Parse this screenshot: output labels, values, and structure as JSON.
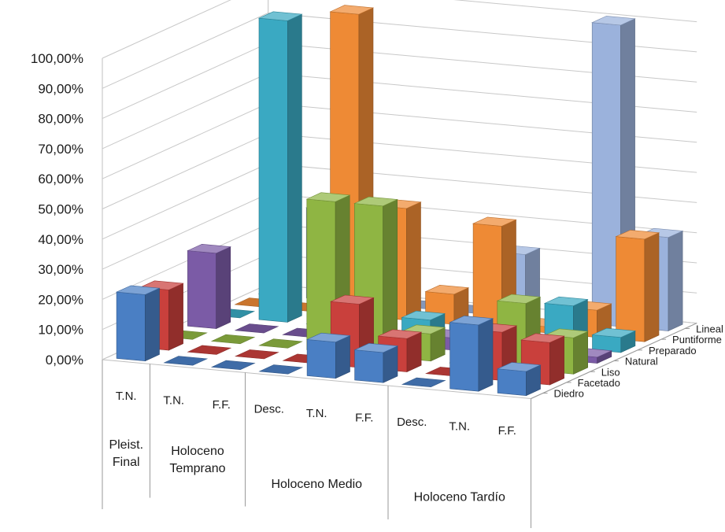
{
  "chart_data": {
    "type": "bar",
    "subtype": "3d-clustered-column",
    "y_axis": {
      "ticks": [
        "0,00%",
        "10,00%",
        "20,00%",
        "30,00%",
        "40,00%",
        "50,00%",
        "60,00%",
        "70,00%",
        "80,00%",
        "90,00%",
        "100,00%"
      ],
      "ylim": [
        0,
        100
      ],
      "unit": "%"
    },
    "gridlines": true,
    "category_labels": [
      "T.N.",
      "T.N.",
      "F.F.",
      "Desc.",
      "T.N.",
      "F.F.",
      "Desc.",
      "T.N.",
      "F.F."
    ],
    "groups": [
      {
        "label": "Pleist. Final",
        "span": 1
      },
      {
        "label": "Holoceno Temprano",
        "span": 2
      },
      {
        "label": "Holoceno Medio",
        "span": 3
      },
      {
        "label": "Holoceno Tardío",
        "span": 3
      }
    ],
    "series": [
      {
        "name": "Diedro",
        "color": "#4a7fc4",
        "values": [
          22,
          0,
          0,
          0,
          12,
          10,
          0,
          22,
          8
        ]
      },
      {
        "name": "Facetado",
        "color": "#c9403c",
        "values": [
          20,
          0,
          0,
          0,
          21,
          11,
          0,
          16,
          14
        ]
      },
      {
        "name": "Liso",
        "color": "#8fb543",
        "values": [
          0,
          0,
          0,
          50,
          50,
          9,
          0,
          22,
          12
        ]
      },
      {
        "name": "Natural",
        "color": "#7b5ba6",
        "values": [
          25,
          0,
          0,
          0,
          0,
          4,
          0,
          0,
          2
        ]
      },
      {
        "name": "Preparado",
        "color": "#3aa9c2",
        "values": [
          0,
          100,
          0,
          0,
          5,
          4,
          0,
          14,
          5
        ]
      },
      {
        "name": "Puntiforme",
        "color": "#ee8a35",
        "values": [
          0,
          0,
          100,
          37,
          10,
          34,
          2,
          9,
          34
        ]
      },
      {
        "name": "Lineal",
        "color": "#9bb2dc",
        "values": [
          0,
          30,
          0,
          0,
          0,
          21,
          0,
          100,
          31
        ]
      }
    ]
  }
}
